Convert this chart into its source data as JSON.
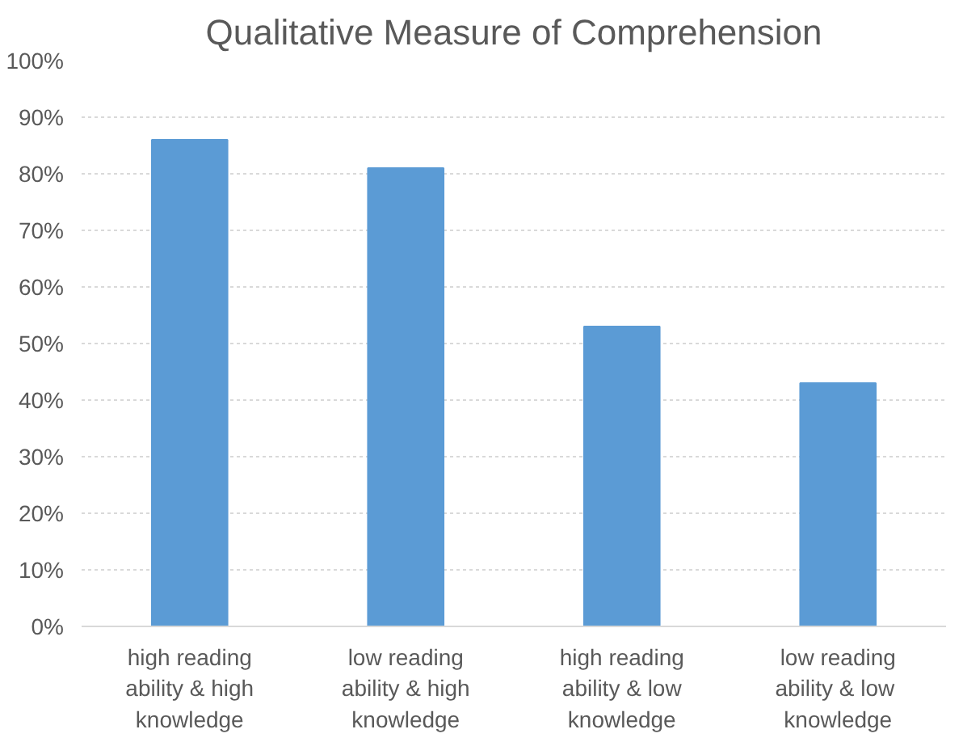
{
  "chart_data": {
    "type": "bar",
    "title": "Qualitative Measure of Comprehension",
    "categories": [
      "high reading ability & high knowledge",
      "low reading ability & high knowledge",
      "high reading ability & low knowledge",
      "low reading ability &  low knowledge"
    ],
    "values": [
      86,
      81,
      53,
      43
    ],
    "color": "#5b9bd5",
    "ylim": [
      0,
      100
    ],
    "yticks": [
      {
        "value": 0,
        "label": "0%"
      },
      {
        "value": 10,
        "label": "10%"
      },
      {
        "value": 20,
        "label": "20%"
      },
      {
        "value": 30,
        "label": "30%"
      },
      {
        "value": 40,
        "label": "40%"
      },
      {
        "value": 50,
        "label": "50%"
      },
      {
        "value": 60,
        "label": "60%"
      },
      {
        "value": 70,
        "label": "70%"
      },
      {
        "value": 80,
        "label": "80%"
      },
      {
        "value": 90,
        "label": "90%"
      },
      {
        "value": 100,
        "label": "100%"
      }
    ],
    "grid": "y"
  }
}
